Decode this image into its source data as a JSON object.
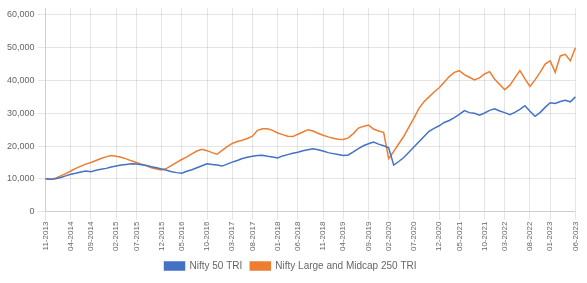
{
  "chart_data": {
    "type": "line",
    "categories": [
      "11-2013",
      null,
      null,
      null,
      null,
      "04-2014",
      null,
      null,
      null,
      "09-2014",
      null,
      null,
      null,
      null,
      "02-2015",
      null,
      null,
      null,
      "07-2015",
      null,
      null,
      null,
      null,
      "12-2015",
      null,
      null,
      null,
      "05-2016",
      null,
      null,
      null,
      null,
      "10-2016",
      null,
      null,
      null,
      null,
      "03-2017",
      null,
      null,
      null,
      "08-2017",
      null,
      null,
      null,
      null,
      "01-2018",
      null,
      null,
      null,
      "06-2018",
      null,
      null,
      null,
      null,
      "11-2018",
      null,
      null,
      null,
      "04-2019",
      null,
      null,
      null,
      null,
      "09-2019",
      null,
      null,
      null,
      "02-2020",
      null,
      null,
      null,
      null,
      "07-2020",
      null,
      null,
      null,
      null,
      "12-2020",
      null,
      null,
      null,
      "05-2021",
      null,
      null,
      null,
      null,
      "10-2021",
      null,
      null,
      null,
      "03-2022",
      null,
      null,
      null,
      null,
      "08-2022",
      null,
      null,
      null,
      "01-2023",
      null,
      null,
      null,
      null,
      "06-2023"
    ],
    "series": [
      {
        "name": "Nifty 50 TRI",
        "color": "#4472C4",
        "values": [
          10000,
          9850,
          10050,
          10400,
          10900,
          11400,
          11700,
          12100,
          12400,
          12200,
          12600,
          12900,
          13200,
          13600,
          13900,
          14200,
          14400,
          14600,
          14500,
          14300,
          14100,
          13700,
          13400,
          13000,
          12600,
          12200,
          11900,
          11700,
          12300,
          12800,
          13400,
          14000,
          14600,
          14400,
          14200,
          13900,
          14500,
          15100,
          15600,
          16200,
          16600,
          16900,
          17100,
          17200,
          16900,
          16700,
          16400,
          17000,
          17400,
          17800,
          18100,
          18600,
          18900,
          19200,
          18900,
          18500,
          18000,
          17700,
          17400,
          17100,
          17300,
          18200,
          19200,
          20100,
          20700,
          21200,
          20600,
          20100,
          19500,
          14200,
          15300,
          16500,
          18100,
          19700,
          21300,
          22900,
          24500,
          25400,
          26200,
          27200,
          27800,
          28700,
          29700,
          30800,
          30200,
          30000,
          29400,
          30100,
          30900,
          31400,
          30700,
          30200,
          29600,
          30300,
          31200,
          32300,
          30600,
          29100,
          30200,
          31800,
          33200,
          33000,
          33600,
          34000,
          33500,
          35000
        ]
      },
      {
        "name": "Nifty Large and Midcap 250 TRI",
        "color": "#ED7D31",
        "values": [
          10000,
          9900,
          10200,
          10900,
          11600,
          12400,
          13200,
          13900,
          14500,
          15000,
          15600,
          16200,
          16700,
          17100,
          16900,
          16600,
          16100,
          15500,
          15000,
          14500,
          14000,
          13400,
          13000,
          12700,
          13200,
          14100,
          15000,
          15900,
          16700,
          17600,
          18500,
          19000,
          18600,
          18000,
          17500,
          18700,
          19800,
          20800,
          21400,
          21800,
          22300,
          23000,
          24800,
          25300,
          25300,
          24800,
          24000,
          23500,
          23000,
          22900,
          23600,
          24300,
          25000,
          24600,
          23900,
          23300,
          22800,
          22400,
          22100,
          22000,
          22500,
          23800,
          25500,
          26000,
          26400,
          25200,
          24600,
          24200,
          16200,
          18400,
          20700,
          23000,
          25800,
          28500,
          31500,
          33500,
          35000,
          36500,
          37800,
          39500,
          41200,
          42500,
          43000,
          41800,
          41000,
          40200,
          40800,
          42000,
          42700,
          40400,
          38800,
          37200,
          38500,
          40800,
          43000,
          40500,
          38200,
          40200,
          42500,
          45000,
          46000,
          42500,
          47500,
          48000,
          46000,
          50000
        ]
      }
    ],
    "ylim": [
      0,
      62000
    ],
    "yticks": [
      0,
      {
        "value": 10000,
        "label": "10,000"
      },
      {
        "value": 20000,
        "label": "20,000"
      },
      {
        "value": 30000,
        "label": "30,000"
      },
      {
        "value": 40000,
        "label": "40,000"
      },
      {
        "value": 50000,
        "label": "50,000"
      },
      {
        "value": 60000,
        "label": "60,000"
      }
    ],
    "grid": true,
    "legend": "bottom"
  }
}
